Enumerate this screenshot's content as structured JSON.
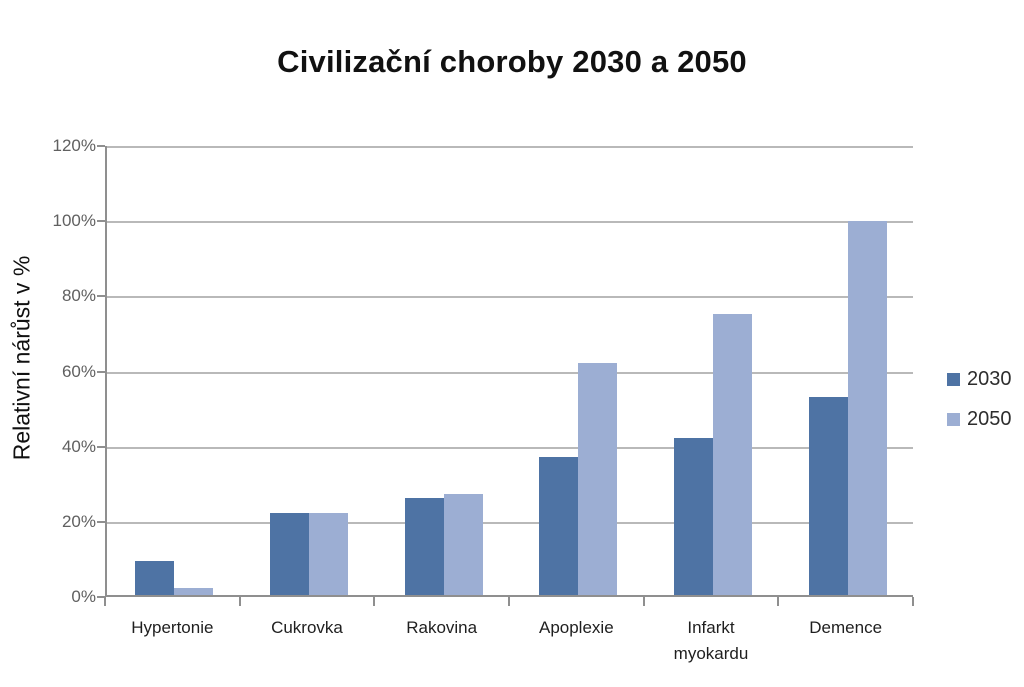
{
  "chart_data": {
    "type": "bar",
    "title": "Civilizační choroby 2030 a 2050",
    "ylabel": "Relativní nárůst v %",
    "xlabel": "",
    "categories": [
      "Hypertonie",
      "Cukrovka",
      "Rakovina",
      "Apoplexie",
      "Infarkt\nmyokardu",
      "Demence"
    ],
    "series": [
      {
        "name": "2030",
        "color": "#4E73A4",
        "values": [
          9,
          22,
          26,
          37,
          42,
          53
        ]
      },
      {
        "name": "2050",
        "color": "#9CAED3",
        "values": [
          2,
          22,
          27,
          62,
          75,
          100
        ]
      }
    ],
    "ylim": [
      0,
      120
    ],
    "yticks": [
      0,
      20,
      40,
      60,
      80,
      100,
      120
    ],
    "ytick_labels": [
      "0%",
      "20%",
      "40%",
      "60%",
      "80%",
      "100%",
      "120%"
    ],
    "grid": true,
    "legend_position": "right"
  },
  "colors": {
    "series_2030": "#4E73A4",
    "series_2050": "#9CAED3",
    "gridline": "#b9b9b9",
    "axis": "#8f8f8f",
    "y_tick_text": "#606060",
    "x_tick_text": "#1f1f1f",
    "title_text": "#111111",
    "background": "#ffffff"
  }
}
